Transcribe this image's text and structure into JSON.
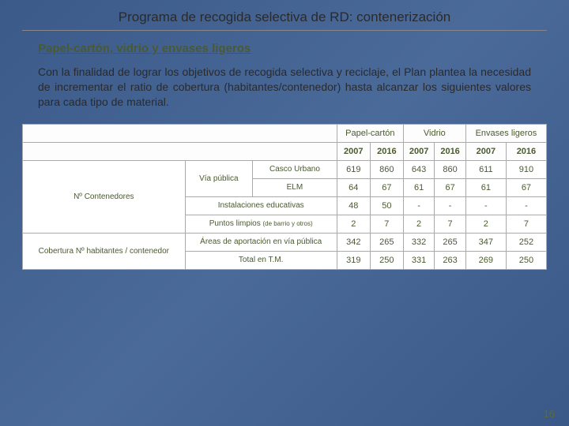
{
  "title": "Programa de recogida selectiva de RD: contenerización",
  "subtitle": "Papel-cartón, vidrio y envases ligeros",
  "paragraph": "Con la finalidad de lograr los objetivos de recogida selectiva y reciclaje, el Plan plantea la necesidad de incrementar el ratio de cobertura (habitantes/contenedor) hasta alcanzar los siguientes valores para cada tipo de material.",
  "table": {
    "header_groups": [
      "Papel-cartón",
      "Vidrio",
      "Envases ligeros"
    ],
    "years": [
      "2007",
      "2016",
      "2007",
      "2016",
      "2007",
      "2016"
    ],
    "section1_label": "Nº Contenedores",
    "section1_sub": "Vía pública",
    "section2_label": "Cobertura Nº habitantes / contenedor",
    "rows": [
      {
        "label": "Casco Urbano",
        "vals": [
          "619",
          "860",
          "643",
          "860",
          "611",
          "910"
        ]
      },
      {
        "label": "ELM",
        "vals": [
          "64",
          "67",
          "61",
          "67",
          "61",
          "67"
        ]
      },
      {
        "label": "Instalaciones educativas",
        "vals": [
          "48",
          "50",
          "-",
          "-",
          "-",
          "-"
        ]
      },
      {
        "label": "Puntos limpios ",
        "label_small": "(de barrio y otros)",
        "vals": [
          "2",
          "7",
          "2",
          "7",
          "2",
          "7"
        ]
      },
      {
        "label": "Áreas de aportación en vía pública",
        "vals": [
          "342",
          "265",
          "332",
          "265",
          "347",
          "252"
        ]
      },
      {
        "label": "Total en T.M.",
        "vals": [
          "319",
          "250",
          "331",
          "263",
          "269",
          "250"
        ]
      }
    ]
  },
  "pagenum": "16",
  "colors": {
    "text_olive": "#4a5a30",
    "border": "#aaaaaa",
    "bg_start": "#3b5a8a",
    "bg_end": "#3a5888"
  }
}
